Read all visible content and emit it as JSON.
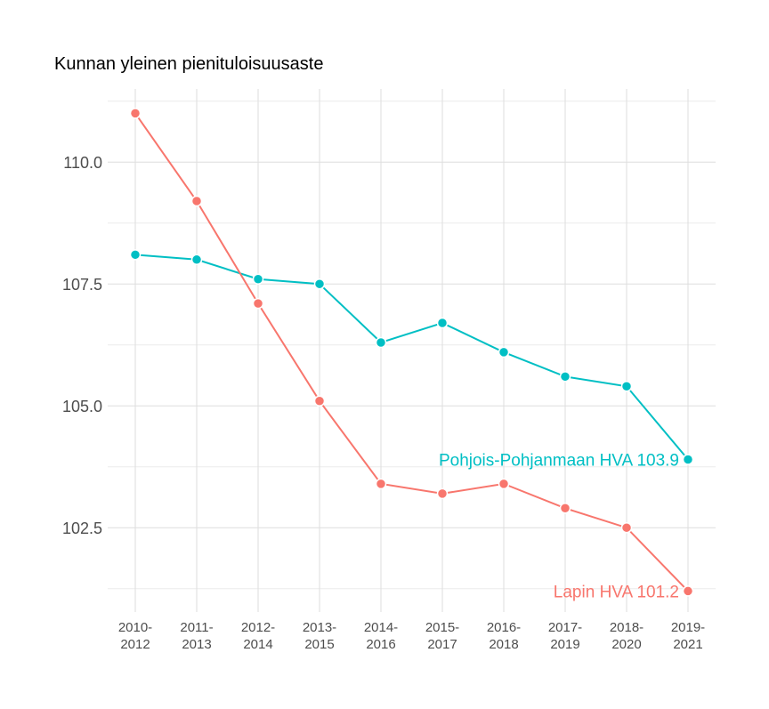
{
  "chart_data": {
    "type": "line",
    "title": "Kunnan yleinen pienituloisuusaste",
    "xlabel": "",
    "ylabel": "",
    "categories": [
      "2010-\n2012",
      "2011-\n2013",
      "2012-\n2014",
      "2013-\n2015",
      "2014-\n2016",
      "2015-\n2017",
      "2016-\n2018",
      "2017-\n2019",
      "2018-\n2020",
      "2019-\n2021"
    ],
    "yticks": [
      102.5,
      105.0,
      107.5,
      110.0
    ],
    "ytick_labels": [
      "102.5",
      "105.0",
      "107.5",
      "110.0"
    ],
    "ylim": [
      100.77,
      111.5
    ],
    "grid": true,
    "legend": "none (direct labels at line end)",
    "series": [
      {
        "name": "Pohjois-Pohjanmaan HVA",
        "end_label": "Pohjois-Pohjanmaan HVA 103.9",
        "color": "#00BFC4",
        "values": [
          108.1,
          108.0,
          107.6,
          107.5,
          106.3,
          106.7,
          106.1,
          105.6,
          105.4,
          103.9
        ]
      },
      {
        "name": "Lapin HVA",
        "end_label": "Lapin HVA 101.2",
        "color": "#F8766D",
        "values": [
          111.0,
          109.2,
          107.1,
          105.1,
          103.4,
          103.2,
          103.4,
          102.9,
          102.5,
          101.2
        ]
      }
    ]
  }
}
